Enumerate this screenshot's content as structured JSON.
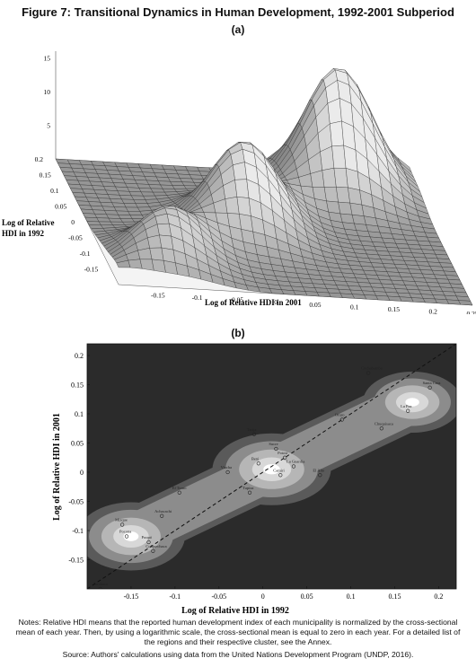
{
  "figure_title": "Figure 7: Transitional Dynamics in Human Development, 1992-2001 Subperiod",
  "notes": "Notes: Relative HDI means that the reported human development index of each municipality is normalized by the cross-sectional mean of each year. Then, by using a logarithmic scale, the cross-sectional mean is equal to zero in each year. For a detailed list of the regions and their respective cluster, see the Annex.",
  "source": "Source: Authors' calculations using data from the United Nations Development Program (UNDP, 2016).",
  "chart_data": [
    {
      "type": "surface",
      "panel_label": "(a)",
      "xlabel": "Log of Relative HDI in 2001",
      "ylabel": "Log of Relative HDI in 1992",
      "x_ticks": [
        "-0.15",
        "-0.1",
        "-0.05",
        "0",
        "0.05",
        "0.1",
        "0.15",
        "0.2",
        "0.25"
      ],
      "y_ticks": [
        "0.2",
        "0.15",
        "0.1",
        "0.05",
        "0",
        "-0.05",
        "-0.1",
        "-0.15"
      ],
      "z_ticks": [
        "15",
        "10",
        "5"
      ],
      "xlim": [
        -0.2,
        0.25
      ],
      "ylim": [
        -0.2,
        0.2
      ],
      "peaks": [
        {
          "x": -0.12,
          "y": -0.12,
          "height": 6
        },
        {
          "x": 0.0,
          "y": 0.0,
          "height": 11
        },
        {
          "x": 0.15,
          "y": 0.15,
          "height": 16
        }
      ]
    },
    {
      "type": "contour",
      "panel_label": "(b)",
      "xlabel": "Log of Relative HDI in 1992",
      "ylabel": "Log of Relative HDI in 2001",
      "xlim": [
        -0.2,
        0.22
      ],
      "ylim": [
        -0.2,
        0.22
      ],
      "x_ticks": [
        -0.15,
        -0.1,
        -0.05,
        0,
        0.05,
        0.1,
        0.15,
        0.2
      ],
      "x_tick_labels": [
        "-0.15",
        "-0.1",
        "-0.05",
        "0",
        "0.05",
        "0.1",
        "0.15",
        "0.2"
      ],
      "y_ticks": [
        0.2,
        0.15,
        0.1,
        0.05,
        0,
        -0.05,
        -0.1,
        -0.15
      ],
      "y_tick_labels": [
        "0.2",
        "0.15",
        "0.1",
        "0.05",
        "0",
        "-0.05",
        "-0.1",
        "-0.15"
      ],
      "diagonal": true,
      "clusters": [
        {
          "x": -0.15,
          "y": -0.11
        },
        {
          "x": 0.01,
          "y": 0.005
        },
        {
          "x": 0.17,
          "y": 0.12
        }
      ],
      "points": [
        {
          "label": "Cochabamba",
          "x": 0.12,
          "y": 0.17
        },
        {
          "label": "Santa Cruz",
          "x": 0.19,
          "y": 0.145
        },
        {
          "label": "La Paz",
          "x": 0.165,
          "y": 0.105
        },
        {
          "label": "Oruro",
          "x": 0.09,
          "y": 0.09
        },
        {
          "label": "Chuquisaca",
          "x": 0.135,
          "y": 0.075
        },
        {
          "label": "Tarija",
          "x": -0.01,
          "y": 0.065
        },
        {
          "label": "Sucre",
          "x": 0.015,
          "y": 0.04
        },
        {
          "label": "Potosí",
          "x": 0.025,
          "y": 0.025
        },
        {
          "label": "Beni",
          "x": -0.005,
          "y": 0.015
        },
        {
          "label": "La Guardia",
          "x": 0.035,
          "y": 0.01
        },
        {
          "label": "Viacha",
          "x": -0.04,
          "y": 0.0
        },
        {
          "label": "Camiri",
          "x": 0.02,
          "y": -0.005
        },
        {
          "label": "El Alto",
          "x": 0.065,
          "y": -0.005
        },
        {
          "label": "Tupiza",
          "x": -0.015,
          "y": -0.035
        },
        {
          "label": "El Torno",
          "x": -0.095,
          "y": -0.035
        },
        {
          "label": "Achacachi",
          "x": -0.115,
          "y": -0.075
        },
        {
          "label": "Mizque",
          "x": -0.16,
          "y": -0.09
        },
        {
          "label": "Pocona",
          "x": -0.155,
          "y": -0.11
        },
        {
          "label": "Poopó",
          "x": -0.13,
          "y": -0.12
        },
        {
          "label": "Colquechaca",
          "x": -0.125,
          "y": -0.135
        },
        {
          "label": "Tarabuco",
          "x": -0.185,
          "y": -0.2
        }
      ]
    }
  ]
}
